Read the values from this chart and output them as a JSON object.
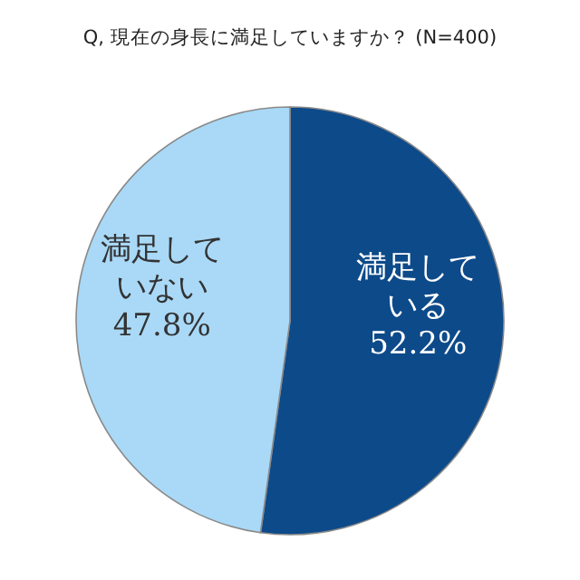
{
  "chart_data": {
    "type": "pie",
    "title": "Q, 現在の身長に満足していますか？ (N=400)",
    "categories": [
      "満足している",
      "満足していない"
    ],
    "values": [
      52.2,
      47.8
    ],
    "colors": [
      "#0d4a8a",
      "#a9d9f7"
    ],
    "value_labels": [
      "52.2%",
      "47.8%"
    ]
  }
}
